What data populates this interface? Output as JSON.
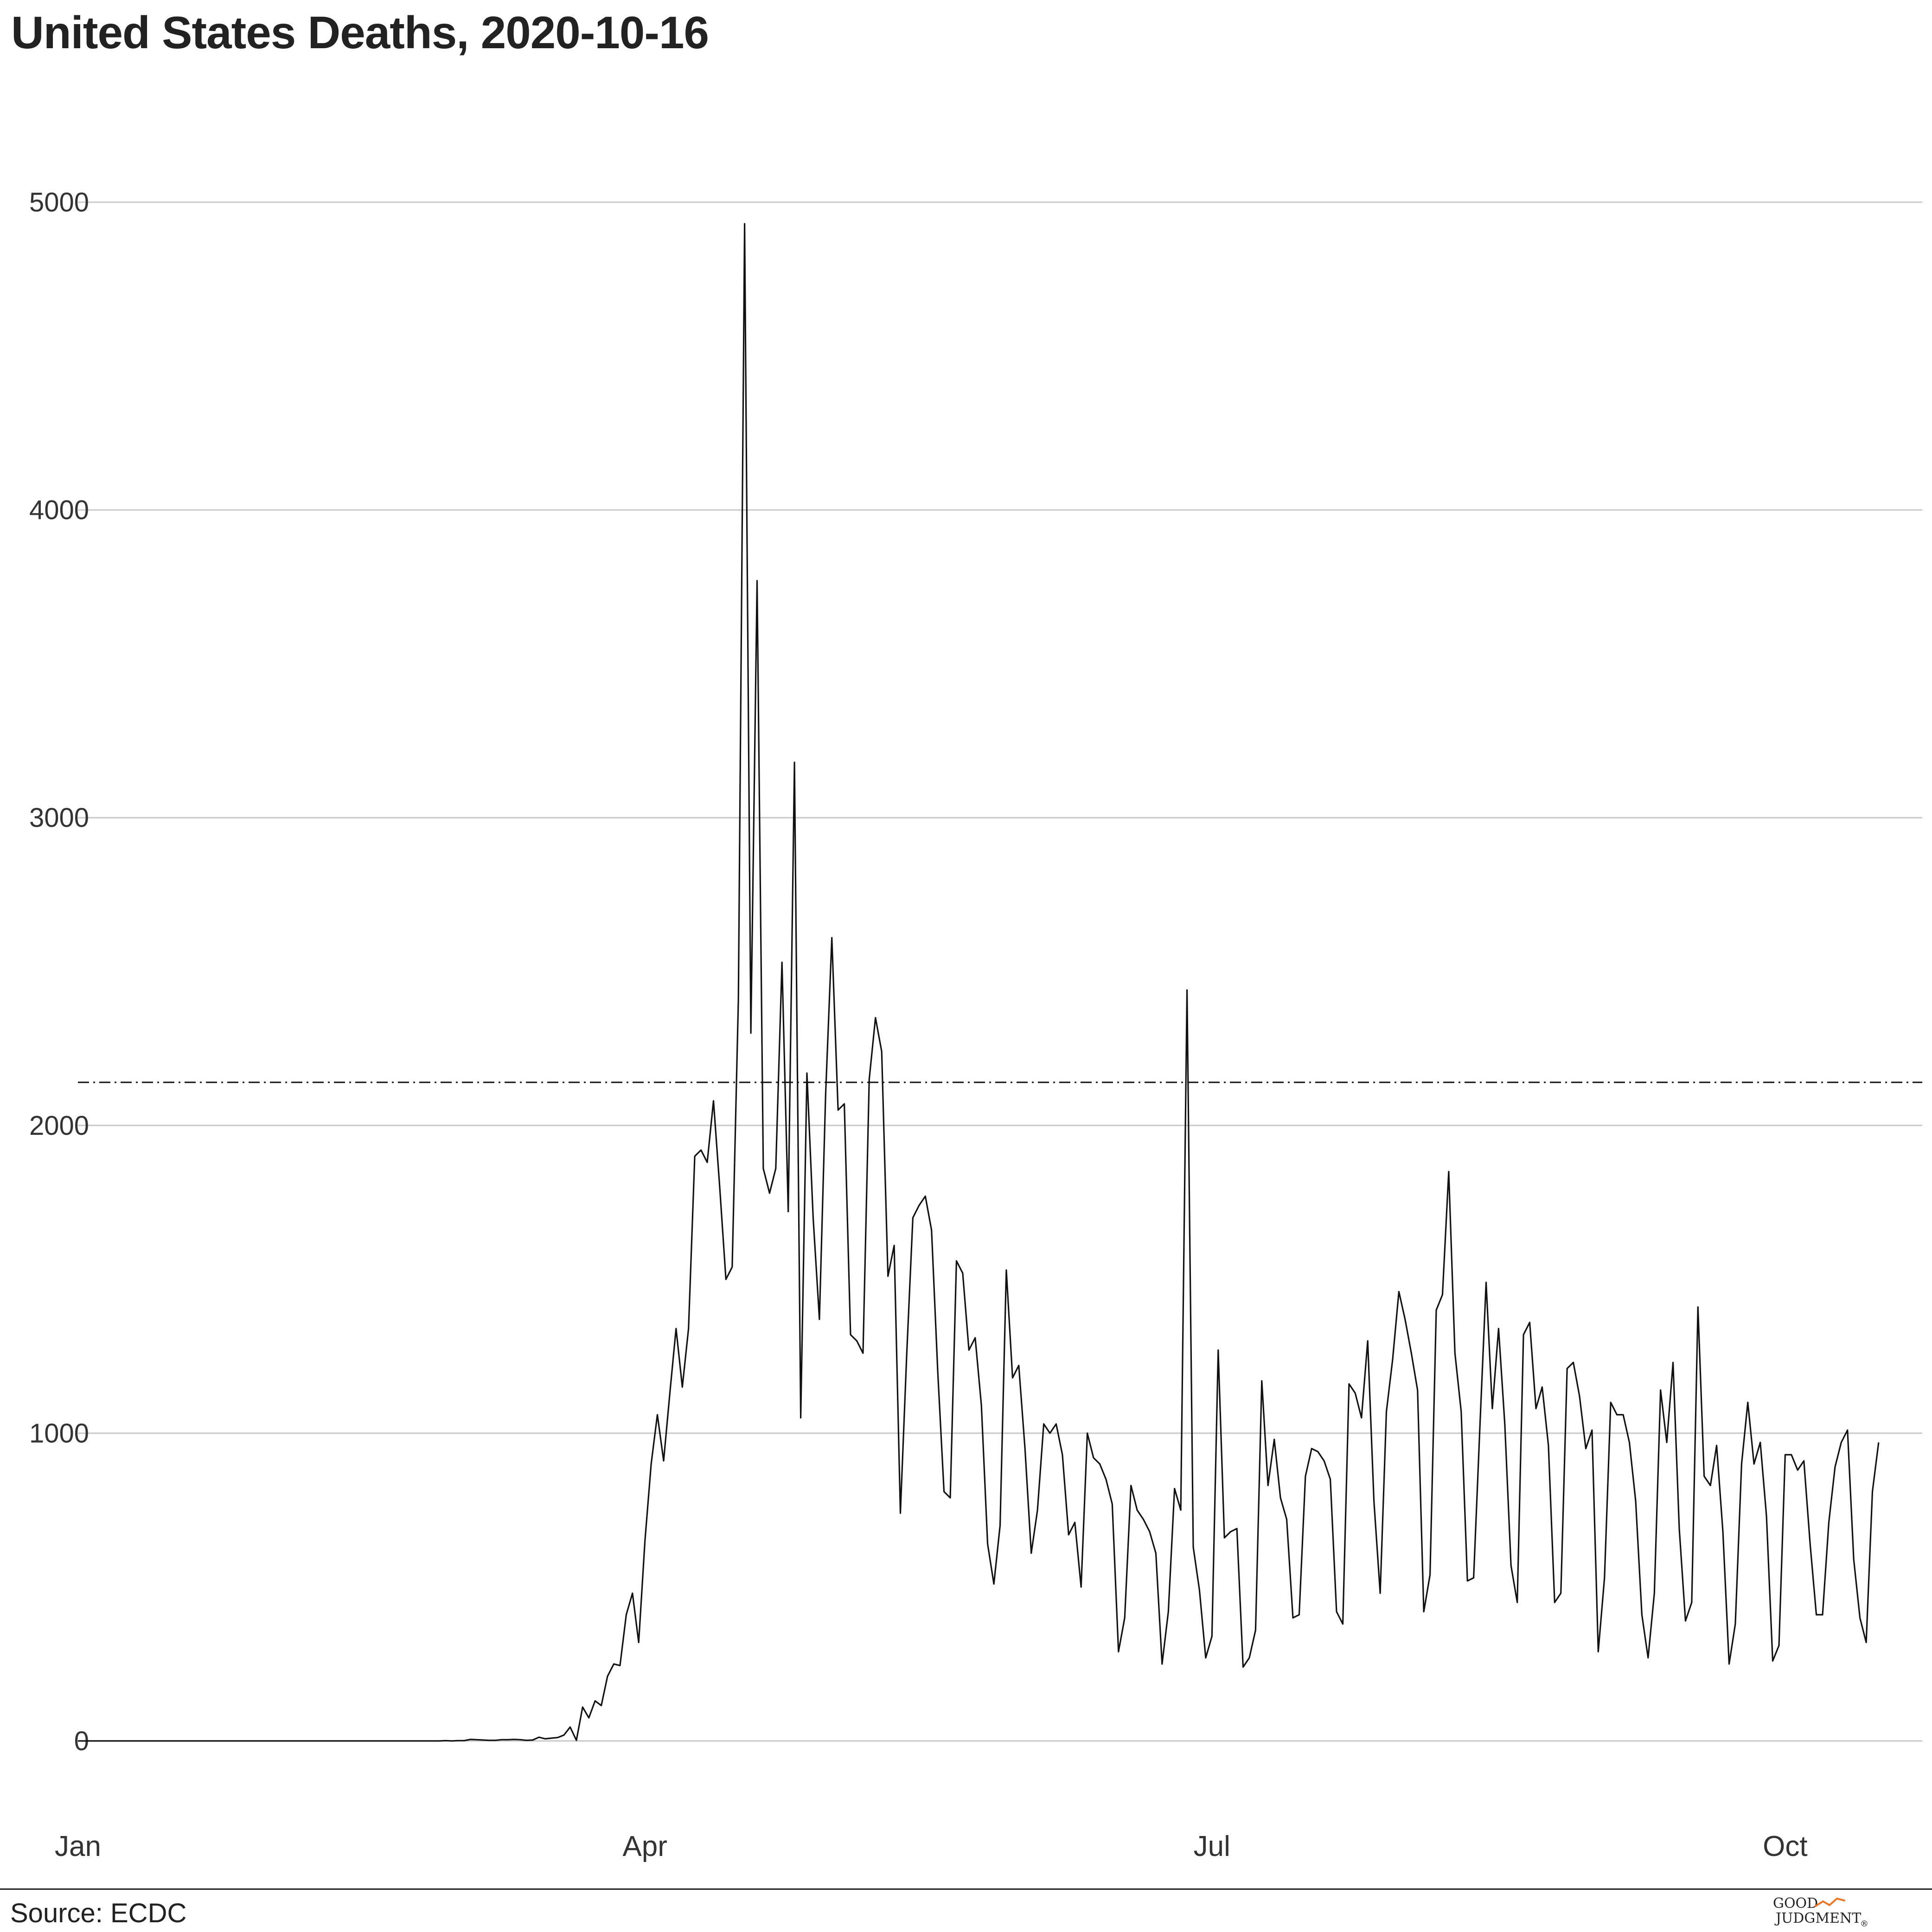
{
  "title": "United States Deaths, 2020-10-16",
  "source": "Source: ECDC",
  "logo": {
    "line1": "GOOD",
    "line2": "JUDGMENT",
    "mark": "®",
    "accent_color": "#e8782a"
  },
  "colors": {
    "line": "#111111",
    "grid": "#c8c8c8",
    "reference": "#111111",
    "text": "#222222"
  },
  "chart_data": {
    "type": "line",
    "title": "United States Deaths, 2020-10-16",
    "xlabel": "",
    "ylabel": "",
    "x_start": "2020-01-01",
    "x_end": "2020-10-16",
    "xlim": [
      "2020-01-01",
      "2020-10-23"
    ],
    "ylim": [
      -200,
      5200
    ],
    "x_ticks": [
      {
        "date": "2020-01-01",
        "label": "Jan"
      },
      {
        "date": "2020-04-01",
        "label": "Apr"
      },
      {
        "date": "2020-07-01",
        "label": "Jul"
      },
      {
        "date": "2020-10-01",
        "label": "Oct"
      }
    ],
    "y_ticks": [
      0,
      1000,
      2000,
      3000,
      4000,
      5000
    ],
    "grid": "horizontal",
    "reference_line": {
      "y": 2140,
      "style": "dash-dot"
    },
    "series": [
      {
        "values": [
          0,
          0,
          0,
          0,
          0,
          0,
          0,
          0,
          0,
          0,
          0,
          0,
          0,
          0,
          0,
          0,
          0,
          0,
          0,
          0,
          0,
          0,
          0,
          0,
          0,
          0,
          0,
          0,
          0,
          0,
          0,
          0,
          0,
          0,
          0,
          0,
          0,
          0,
          0,
          0,
          0,
          0,
          0,
          0,
          0,
          0,
          0,
          0,
          0,
          0,
          0,
          0,
          0,
          0,
          0,
          0,
          0,
          0,
          0,
          1,
          0,
          1,
          1,
          5,
          4,
          3,
          2,
          2,
          4,
          4,
          5,
          4,
          2,
          3,
          12,
          7,
          9,
          11,
          19,
          45,
          2,
          110,
          75,
          130,
          115,
          210,
          250,
          245,
          410,
          480,
          320,
          650,
          900,
          1060,
          910,
          1130,
          1340,
          1150,
          1340,
          1900,
          1920,
          1880,
          2080,
          1800,
          1500,
          1540,
          2410,
          4930,
          2300,
          3770,
          1860,
          1780,
          1860,
          2530,
          1720,
          3180,
          1050,
          2170,
          1700,
          1370,
          2100,
          2610,
          2050,
          2070,
          1320,
          1300,
          1260,
          2150,
          2350,
          2240,
          1510,
          1610,
          740,
          1250,
          1700,
          1740,
          1770,
          1660,
          1200,
          810,
          790,
          1560,
          1520,
          1270,
          1310,
          1090,
          640,
          510,
          700,
          1530,
          1180,
          1220,
          950,
          610,
          750,
          1030,
          1000,
          1030,
          930,
          670,
          710,
          500,
          1000,
          920,
          900,
          850,
          770,
          290,
          400,
          830,
          750,
          720,
          680,
          610,
          250,
          420,
          820,
          750,
          2440,
          630,
          490,
          270,
          340,
          1270,
          660,
          680,
          690,
          240,
          270,
          360,
          1170,
          830,
          980,
          790,
          720,
          400,
          410,
          860,
          950,
          940,
          910,
          850,
          420,
          380,
          1160,
          1130,
          1050,
          1300,
          780,
          480,
          1070,
          1240,
          1460,
          1370,
          1260,
          1140,
          420,
          540,
          1400,
          1450,
          1850,
          1260,
          1070,
          520,
          530,
          1020,
          1490,
          1080,
          1340,
          1030,
          570,
          450,
          1320,
          1360,
          1080,
          1150,
          960,
          450,
          480,
          1210,
          1230,
          1120,
          950,
          1010,
          290,
          530,
          1100,
          1060,
          1060,
          970,
          780,
          410,
          270,
          480,
          1140,
          970,
          1230,
          690,
          390,
          450,
          1410,
          860,
          830,
          960,
          680,
          250,
          380,
          900,
          1100,
          900,
          970,
          730,
          260,
          310,
          930,
          930,
          880,
          910,
          640,
          410,
          410,
          710,
          890,
          970,
          1010,
          590,
          400,
          320,
          810,
          970
        ]
      }
    ]
  }
}
